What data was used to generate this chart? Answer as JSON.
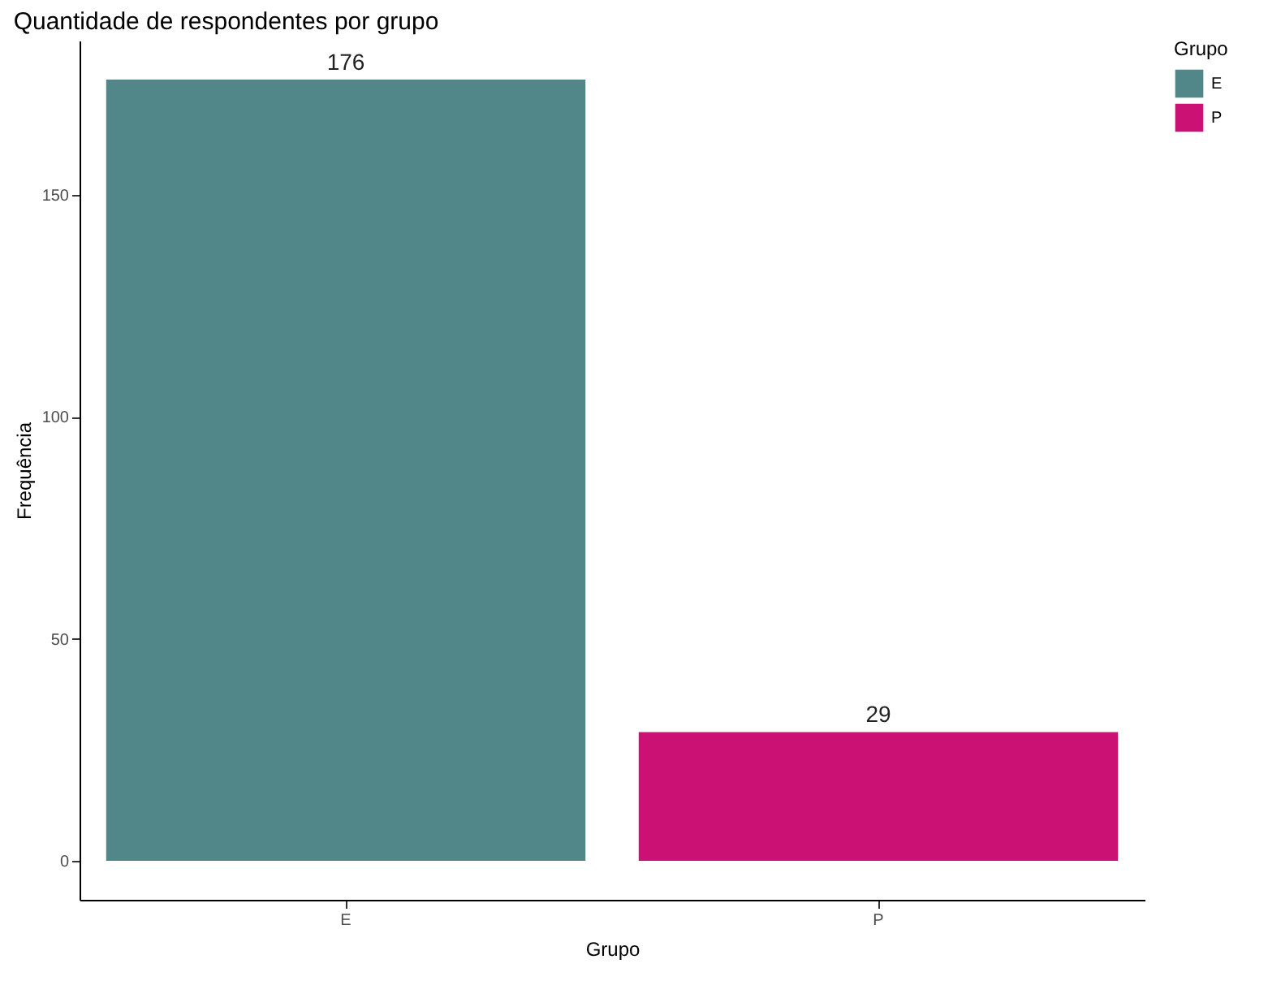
{
  "chart_data": {
    "type": "bar",
    "title": "Quantidade de respondentes por grupo",
    "xlabel": "Grupo",
    "ylabel": "Frequência",
    "legend_title": "Grupo",
    "categories": [
      "E",
      "P"
    ],
    "series": [
      {
        "name": "E",
        "color": "#52878a",
        "values": [
          176,
          null
        ]
      },
      {
        "name": "P",
        "color": "#cc1174",
        "values": [
          null,
          29
        ]
      }
    ],
    "stacked": true,
    "ylim": [
      -8.8,
      184.8
    ],
    "yticks": [
      0,
      50,
      100,
      150
    ],
    "data_labels": true,
    "grid": false,
    "legend": "right"
  }
}
